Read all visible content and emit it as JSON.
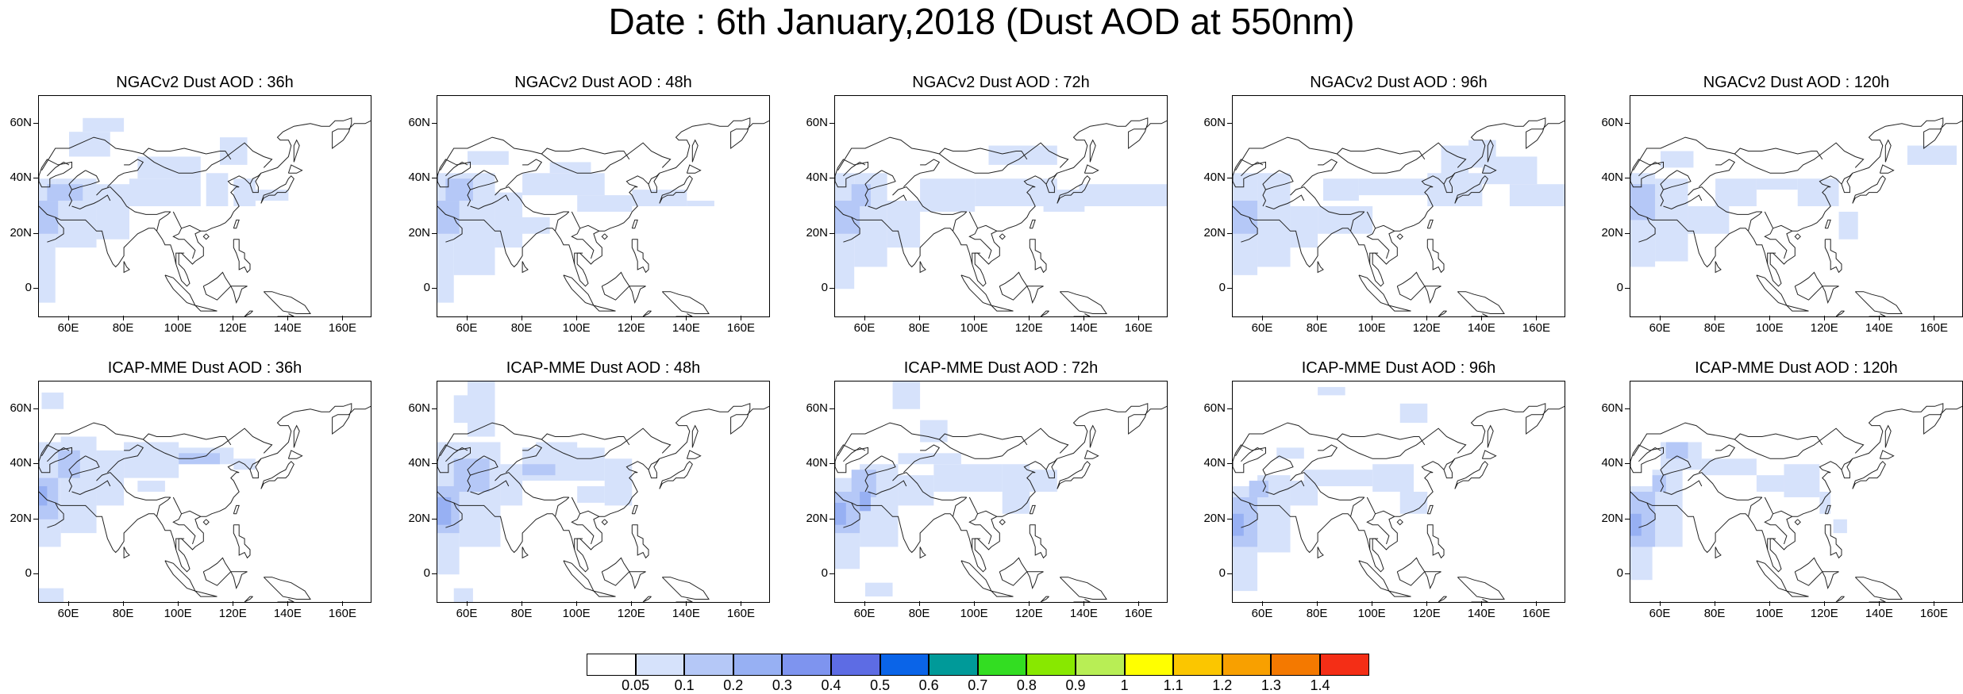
{
  "title": "Date : 6th January,2018 (Dust AOD at 550nm)",
  "panels": [
    {
      "title": "NGACv2 Dust AOD : 36h"
    },
    {
      "title": "NGACv2 Dust AOD : 48h"
    },
    {
      "title": "NGACv2 Dust AOD : 72h"
    },
    {
      "title": "NGACv2 Dust AOD : 96h"
    },
    {
      "title": "NGACv2 Dust AOD : 120h"
    },
    {
      "title": "ICAP-MME Dust AOD : 36h"
    },
    {
      "title": "ICAP-MME Dust AOD : 48h"
    },
    {
      "title": "ICAP-MME Dust AOD : 72h"
    },
    {
      "title": "ICAP-MME Dust AOD : 96h"
    },
    {
      "title": "ICAP-MME Dust AOD : 120h"
    }
  ],
  "axes": {
    "y_ticks": [
      "60N",
      "40N",
      "20N",
      "0"
    ],
    "x_ticks": [
      "60E",
      "80E",
      "100E",
      "120E",
      "140E",
      "160E"
    ]
  },
  "colorbar": {
    "labels": [
      "0.05",
      "0.1",
      "0.2",
      "0.3",
      "0.4",
      "0.5",
      "0.6",
      "0.7",
      "0.8",
      "0.9",
      "1",
      "1.1",
      "1.2",
      "1.3",
      "1.4"
    ],
    "colors": [
      "#ffffff",
      "#d6e2fb",
      "#b5c8f7",
      "#97b0f3",
      "#7e94ef",
      "#5d6ce4",
      "#0a64e8",
      "#009a99",
      "#33dd22",
      "#88e800",
      "#b8ee55",
      "#ffff00",
      "#fbc600",
      "#f8a000",
      "#f47900",
      "#f42e16"
    ]
  },
  "colors": {
    "aod_low": "#d6e2fb",
    "aod_mid": "#b5c8f7",
    "aod_high": "#97b0f3",
    "coast": "#222222"
  }
}
